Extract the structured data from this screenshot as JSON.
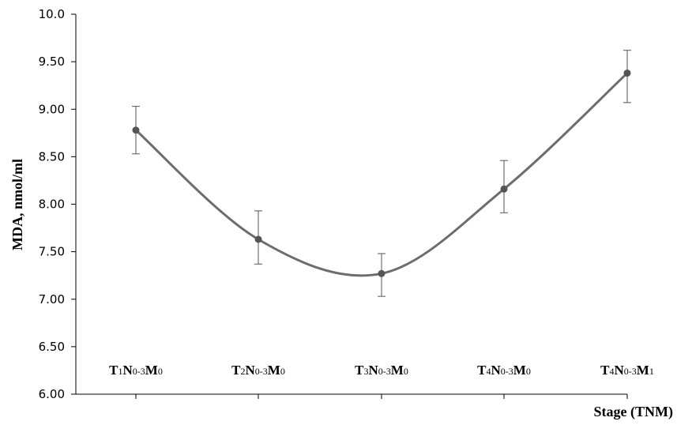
{
  "chart_data": {
    "type": "line",
    "title": "",
    "xlabel": "Stage (TNM)",
    "ylabel": "MDA, nmol/ml",
    "ylim": [
      6.0,
      10.0
    ],
    "yticks": [
      "6.00",
      "6.50",
      "7.00",
      "7.50",
      "8.00",
      "8.50",
      "9.00",
      "9.50",
      "10.0"
    ],
    "categories": [
      {
        "label": "T1N0-3M0",
        "parts": [
          [
            "T",
            false
          ],
          [
            "1",
            true
          ],
          [
            "N",
            false
          ],
          [
            "0-3",
            true
          ],
          [
            "M",
            false
          ],
          [
            "0",
            true
          ]
        ]
      },
      {
        "label": "T2N0-3M0",
        "parts": [
          [
            "T",
            false
          ],
          [
            "2",
            true
          ],
          [
            "N",
            false
          ],
          [
            "0-3",
            true
          ],
          [
            "M",
            false
          ],
          [
            "0",
            true
          ]
        ]
      },
      {
        "label": "T3N0-3M0",
        "parts": [
          [
            "T",
            false
          ],
          [
            "3",
            true
          ],
          [
            "N",
            false
          ],
          [
            "0-3",
            true
          ],
          [
            "M",
            false
          ],
          [
            "0",
            true
          ]
        ]
      },
      {
        "label": "T4N0-3M0",
        "parts": [
          [
            "T",
            false
          ],
          [
            "4",
            true
          ],
          [
            "N",
            false
          ],
          [
            "0-3",
            true
          ],
          [
            "M",
            false
          ],
          [
            "0",
            true
          ]
        ]
      },
      {
        "label": "T4N0-3M1",
        "parts": [
          [
            "T",
            false
          ],
          [
            "4",
            true
          ],
          [
            "N",
            false
          ],
          [
            "0-3",
            true
          ],
          [
            "M",
            false
          ],
          [
            "1",
            true
          ]
        ]
      }
    ],
    "series": [
      {
        "values": [
          8.78,
          7.63,
          7.27,
          8.16,
          9.38
        ],
        "err_low": [
          8.53,
          7.37,
          7.03,
          7.91,
          9.07
        ],
        "err_high": [
          9.03,
          7.93,
          7.48,
          8.46,
          9.62
        ]
      }
    ],
    "grid": false,
    "colors": {
      "line": "#6d6d6d",
      "marker": "#555555",
      "axis": "#000000",
      "errorbar": "#555555"
    }
  }
}
